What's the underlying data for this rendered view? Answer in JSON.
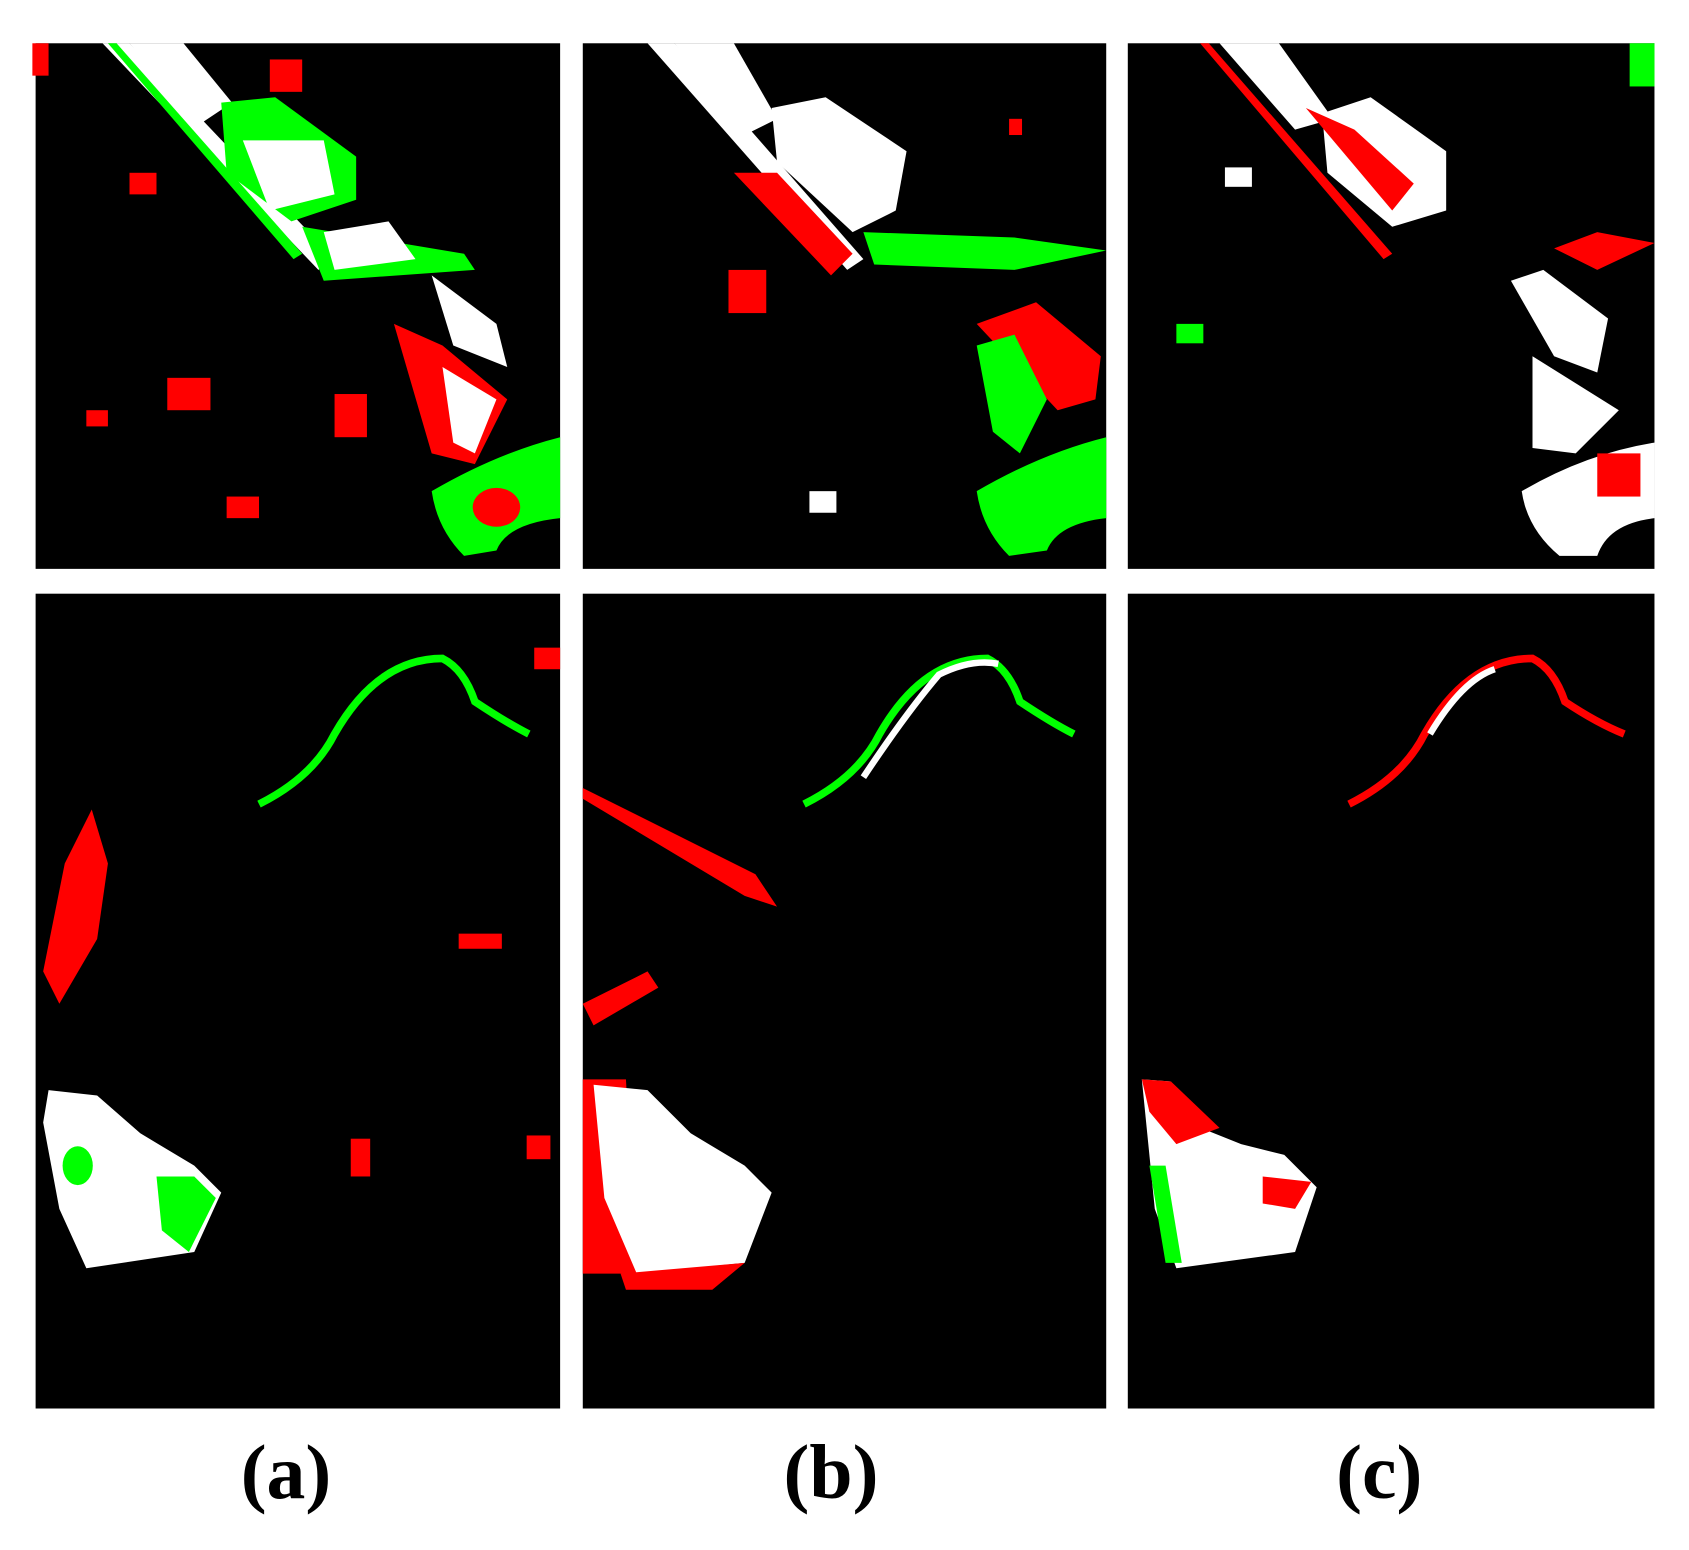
{
  "labels": [
    "(a)",
    "(b)",
    "(c)"
  ]
}
